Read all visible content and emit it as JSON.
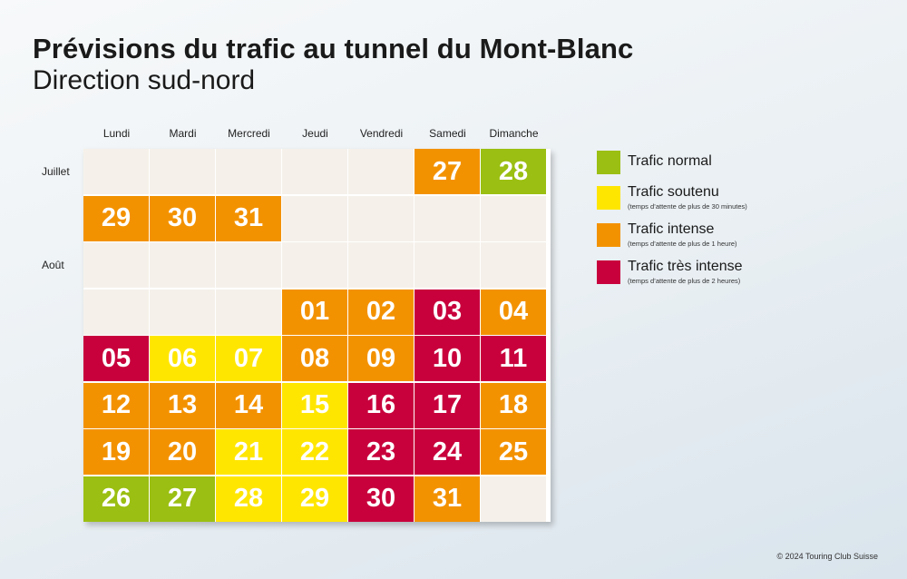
{
  "title": "Prévisions du trafic au tunnel du Mont-Blanc",
  "subtitle": "Direction sud-nord",
  "days": [
    "Lundi",
    "Mardi",
    "Mercredi",
    "Jeudi",
    "Vendredi",
    "Samedi",
    "Dimanche"
  ],
  "months": [
    {
      "label": "Juillet",
      "row": 0
    },
    {
      "label": "Août",
      "row": 2
    }
  ],
  "colors": {
    "normal": "#9bbf12",
    "soutenu": "#ffe600",
    "intense": "#f39200",
    "tres_intense": "#c8003c",
    "empty": "#f5f1ea"
  },
  "calendar": [
    [
      null,
      null,
      null,
      null,
      null,
      {
        "day": "27",
        "level": "intense"
      },
      {
        "day": "28",
        "level": "normal"
      }
    ],
    [
      {
        "day": "29",
        "level": "intense"
      },
      {
        "day": "30",
        "level": "intense"
      },
      {
        "day": "31",
        "level": "intense"
      },
      null,
      null,
      null,
      null
    ],
    [
      null,
      null,
      null,
      null,
      null,
      null,
      null
    ],
    [
      null,
      null,
      null,
      {
        "day": "01",
        "level": "intense"
      },
      {
        "day": "02",
        "level": "intense"
      },
      {
        "day": "03",
        "level": "tres_intense"
      },
      {
        "day": "04",
        "level": "intense"
      }
    ],
    [
      {
        "day": "05",
        "level": "tres_intense"
      },
      {
        "day": "06",
        "level": "soutenu"
      },
      {
        "day": "07",
        "level": "soutenu"
      },
      {
        "day": "08",
        "level": "intense"
      },
      {
        "day": "09",
        "level": "intense"
      },
      {
        "day": "10",
        "level": "tres_intense"
      },
      {
        "day": "11",
        "level": "tres_intense"
      }
    ],
    [
      {
        "day": "12",
        "level": "intense"
      },
      {
        "day": "13",
        "level": "intense"
      },
      {
        "day": "14",
        "level": "intense"
      },
      {
        "day": "15",
        "level": "soutenu"
      },
      {
        "day": "16",
        "level": "tres_intense"
      },
      {
        "day": "17",
        "level": "tres_intense"
      },
      {
        "day": "18",
        "level": "intense"
      }
    ],
    [
      {
        "day": "19",
        "level": "intense"
      },
      {
        "day": "20",
        "level": "intense"
      },
      {
        "day": "21",
        "level": "soutenu"
      },
      {
        "day": "22",
        "level": "soutenu"
      },
      {
        "day": "23",
        "level": "tres_intense"
      },
      {
        "day": "24",
        "level": "tres_intense"
      },
      {
        "day": "25",
        "level": "intense"
      }
    ],
    [
      {
        "day": "26",
        "level": "normal"
      },
      {
        "day": "27",
        "level": "normal"
      },
      {
        "day": "28",
        "level": "soutenu"
      },
      {
        "day": "29",
        "level": "soutenu"
      },
      {
        "day": "30",
        "level": "tres_intense"
      },
      {
        "day": "31",
        "level": "intense"
      },
      null
    ]
  ],
  "legend": [
    {
      "level": "normal",
      "label": "Trafic normal",
      "note": ""
    },
    {
      "level": "soutenu",
      "label": "Trafic soutenu",
      "note": "(temps d’attente de plus de 30 minutes)"
    },
    {
      "level": "intense",
      "label": "Trafic intense",
      "note": "(temps d’attente de plus de 1 heure)"
    },
    {
      "level": "tres_intense",
      "label": "Trafic très intense",
      "note": "(temps d’attente de plus de 2 heures)"
    }
  ],
  "copyright": "© 2024 Touring Club Suisse"
}
